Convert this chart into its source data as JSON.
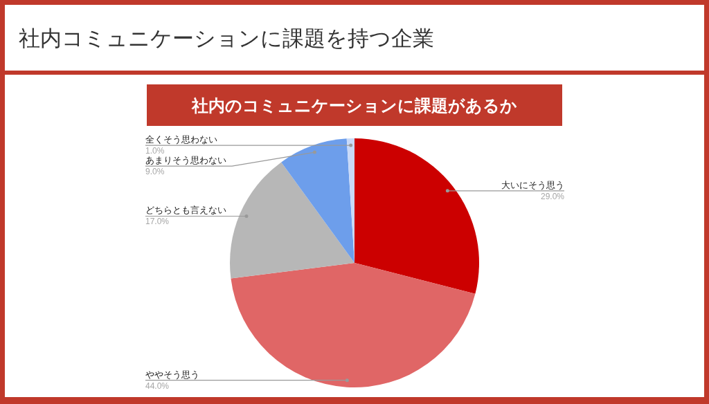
{
  "chart_data": {
    "type": "pie",
    "title": "社内コミュニケーションに課題を持つ企業",
    "subtitle": "社内のコミュニケーションに課題があるか",
    "categories": [
      "大いにそう思う",
      "ややそう思う",
      "どちらとも言えない",
      "あまりそう思わない",
      "全くそう思わない"
    ],
    "values": [
      29,
      44,
      17,
      9,
      1
    ],
    "colors": [
      "#cc0000",
      "#e06666",
      "#b7b7b7",
      "#6d9eeb",
      "#c9daf8"
    ],
    "value_labels": [
      "29.0%",
      "44.0%",
      "17.0%",
      "9.0%",
      "1.0%"
    ]
  }
}
